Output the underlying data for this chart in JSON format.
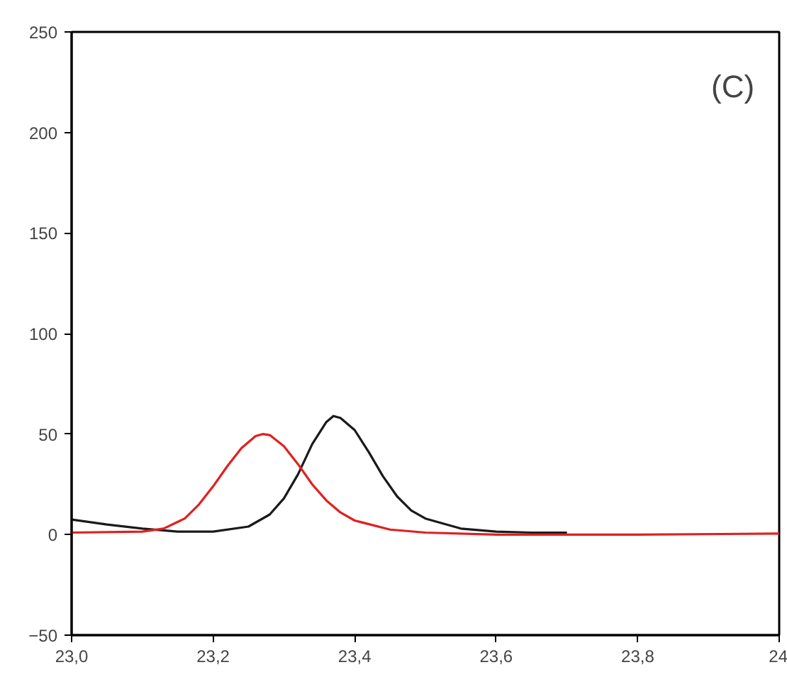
{
  "chart_data": {
    "type": "line",
    "annotations": [
      "(C)"
    ],
    "xlim": [
      23.0,
      24.0
    ],
    "ylim": [
      -50,
      250
    ],
    "xticks": [
      {
        "value": 23.0,
        "label": "23,0"
      },
      {
        "value": 23.2,
        "label": "23,2"
      },
      {
        "value": 23.4,
        "label": "23,4"
      },
      {
        "value": 23.6,
        "label": "23,6"
      },
      {
        "value": 23.8,
        "label": "23,8"
      },
      {
        "value": 24.0,
        "label": "24"
      }
    ],
    "yticks": [
      -50,
      0,
      50,
      100,
      150,
      200,
      250
    ],
    "grid": false,
    "marker": "none",
    "line_style": "solid",
    "series": [
      {
        "color": "#1a1a1a",
        "x": [
          23.0,
          23.05,
          23.1,
          23.15,
          23.2,
          23.25,
          23.28,
          23.3,
          23.32,
          23.34,
          23.36,
          23.37,
          23.38,
          23.4,
          23.42,
          23.44,
          23.46,
          23.48,
          23.5,
          23.55,
          23.6,
          23.65,
          23.7
        ],
        "values": [
          7.5,
          5,
          3,
          1.5,
          1.5,
          4,
          10,
          18,
          30,
          45,
          56,
          59,
          58,
          52,
          41,
          29,
          19,
          12,
          8,
          3,
          1.5,
          1,
          1
        ]
      },
      {
        "color": "#e02020",
        "x": [
          23.0,
          23.1,
          23.13,
          23.16,
          23.18,
          23.2,
          23.22,
          23.24,
          23.26,
          23.27,
          23.28,
          23.3,
          23.32,
          23.34,
          23.36,
          23.38,
          23.4,
          23.45,
          23.5,
          23.6,
          23.8,
          24.0
        ],
        "values": [
          1,
          1.5,
          3,
          8,
          15,
          24,
          34,
          43,
          49,
          50,
          49.5,
          44,
          35,
          25,
          17,
          11,
          7,
          2.5,
          1,
          0,
          0,
          0.5
        ]
      }
    ]
  }
}
